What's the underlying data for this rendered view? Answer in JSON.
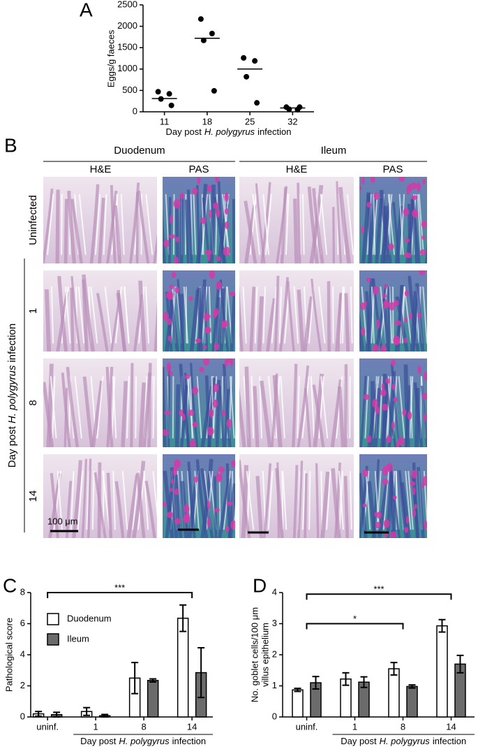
{
  "panel_labels": [
    "A",
    "B",
    "C",
    "D"
  ],
  "chart_data": [
    {
      "type": "scatter",
      "y_label": "Eggs/g faeces",
      "x_label_parts": [
        "Day post",
        "H. polygyrus",
        "infection"
      ],
      "categories": [
        "11",
        "18",
        "25",
        "32"
      ],
      "points": [
        [
          470,
          420,
          300,
          150
        ],
        [
          2170,
          1830,
          1670,
          490
        ],
        [
          1260,
          1190,
          820,
          210
        ],
        [
          110,
          50,
          60,
          110
        ]
      ],
      "medians": [
        310,
        1720,
        1000,
        90
      ],
      "color": "#000000",
      "ylim": [
        0,
        2500
      ],
      "yticks": [
        0,
        500,
        1000,
        1500,
        2000,
        2500
      ]
    },
    {
      "type": "bar",
      "y_label": "Pathological score",
      "x_label_parts": [
        "Day post",
        "H. polygyrus",
        "infection"
      ],
      "categories": [
        "uninf.",
        "1",
        "8",
        "14"
      ],
      "series": [
        {
          "name": "Duodenum",
          "color": "#ffffff",
          "values": [
            0.2,
            0.35,
            2.5,
            6.35
          ],
          "errors": [
            0.15,
            0.25,
            1.0,
            0.85
          ]
        },
        {
          "name": "Ileum",
          "color": "#6b6b6b",
          "values": [
            0.15,
            0.08,
            2.35,
            2.85
          ],
          "errors": [
            0.15,
            0.08,
            0.1,
            1.6
          ]
        }
      ],
      "ylim": [
        0,
        8
      ],
      "yticks": [
        0,
        2,
        4,
        6,
        8
      ],
      "legend": "upper left",
      "significance": [
        {
          "label": "***",
          "from": "uninf.",
          "to": "14",
          "y": 8
        }
      ]
    },
    {
      "type": "bar",
      "y_label_lines": [
        "No. goblet cells/100 μm",
        "villus epithelium"
      ],
      "x_label_parts": [
        "Day post",
        "H. polygyrus",
        "infection"
      ],
      "categories": [
        "uninf.",
        "1",
        "8",
        "14"
      ],
      "series": [
        {
          "name": "Duodenum",
          "color": "#ffffff",
          "values": [
            0.87,
            1.22,
            1.55,
            2.93
          ],
          "errors": [
            0.05,
            0.2,
            0.2,
            0.2
          ]
        },
        {
          "name": "Ileum",
          "color": "#6b6b6b",
          "values": [
            1.1,
            1.12,
            0.98,
            1.7
          ],
          "errors": [
            0.2,
            0.17,
            0.05,
            0.28
          ]
        }
      ],
      "ylim": [
        0,
        4
      ],
      "yticks": [
        0,
        1,
        2,
        3,
        4
      ],
      "significance": [
        {
          "label": "*",
          "from": "uninf.",
          "to": "8",
          "y": 3.0
        },
        {
          "label": "***",
          "from": "uninf.",
          "to": "14",
          "y": 3.95
        }
      ]
    }
  ],
  "micrographs": {
    "tissues": [
      "Duodenum",
      "Ileum"
    ],
    "stains": [
      "H&E",
      "PAS"
    ],
    "row_labels": [
      "Uninfected",
      "1",
      "8",
      "14"
    ],
    "side_label_parts": [
      "Day post",
      "H. polygyrus",
      "infection"
    ],
    "scale_bar": "100 μm"
  }
}
